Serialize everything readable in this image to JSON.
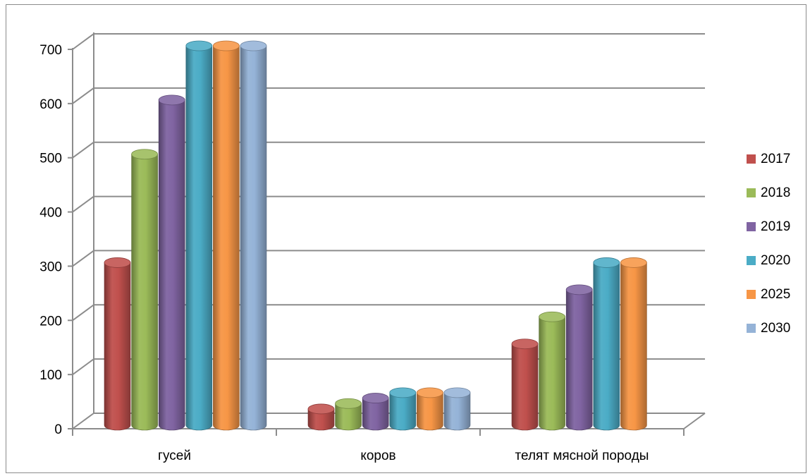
{
  "chart_data": {
    "type": "bar",
    "style": "3d-cylinder",
    "categories": [
      "гусей",
      "коров",
      "телят мясной породы"
    ],
    "series": [
      {
        "name": "2017",
        "color": "#c0504d",
        "values": [
          300,
          30,
          150
        ]
      },
      {
        "name": "2018",
        "color": "#9bbb59",
        "values": [
          500,
          40,
          200
        ]
      },
      {
        "name": "2019",
        "color": "#8064a2",
        "values": [
          600,
          50,
          250
        ]
      },
      {
        "name": "2020",
        "color": "#4bacc6",
        "values": [
          700,
          60,
          300
        ]
      },
      {
        "name": "2025",
        "color": "#f79646",
        "values": [
          700,
          60,
          300
        ]
      },
      {
        "name": "2030",
        "color": "#95b3d7",
        "values": [
          700,
          60,
          null
        ]
      }
    ],
    "y_ticks": [
      "0",
      "100",
      "200",
      "300",
      "400",
      "500",
      "600",
      "700"
    ],
    "ylim": [
      0,
      700
    ],
    "grid": true,
    "legend_position": "right"
  }
}
